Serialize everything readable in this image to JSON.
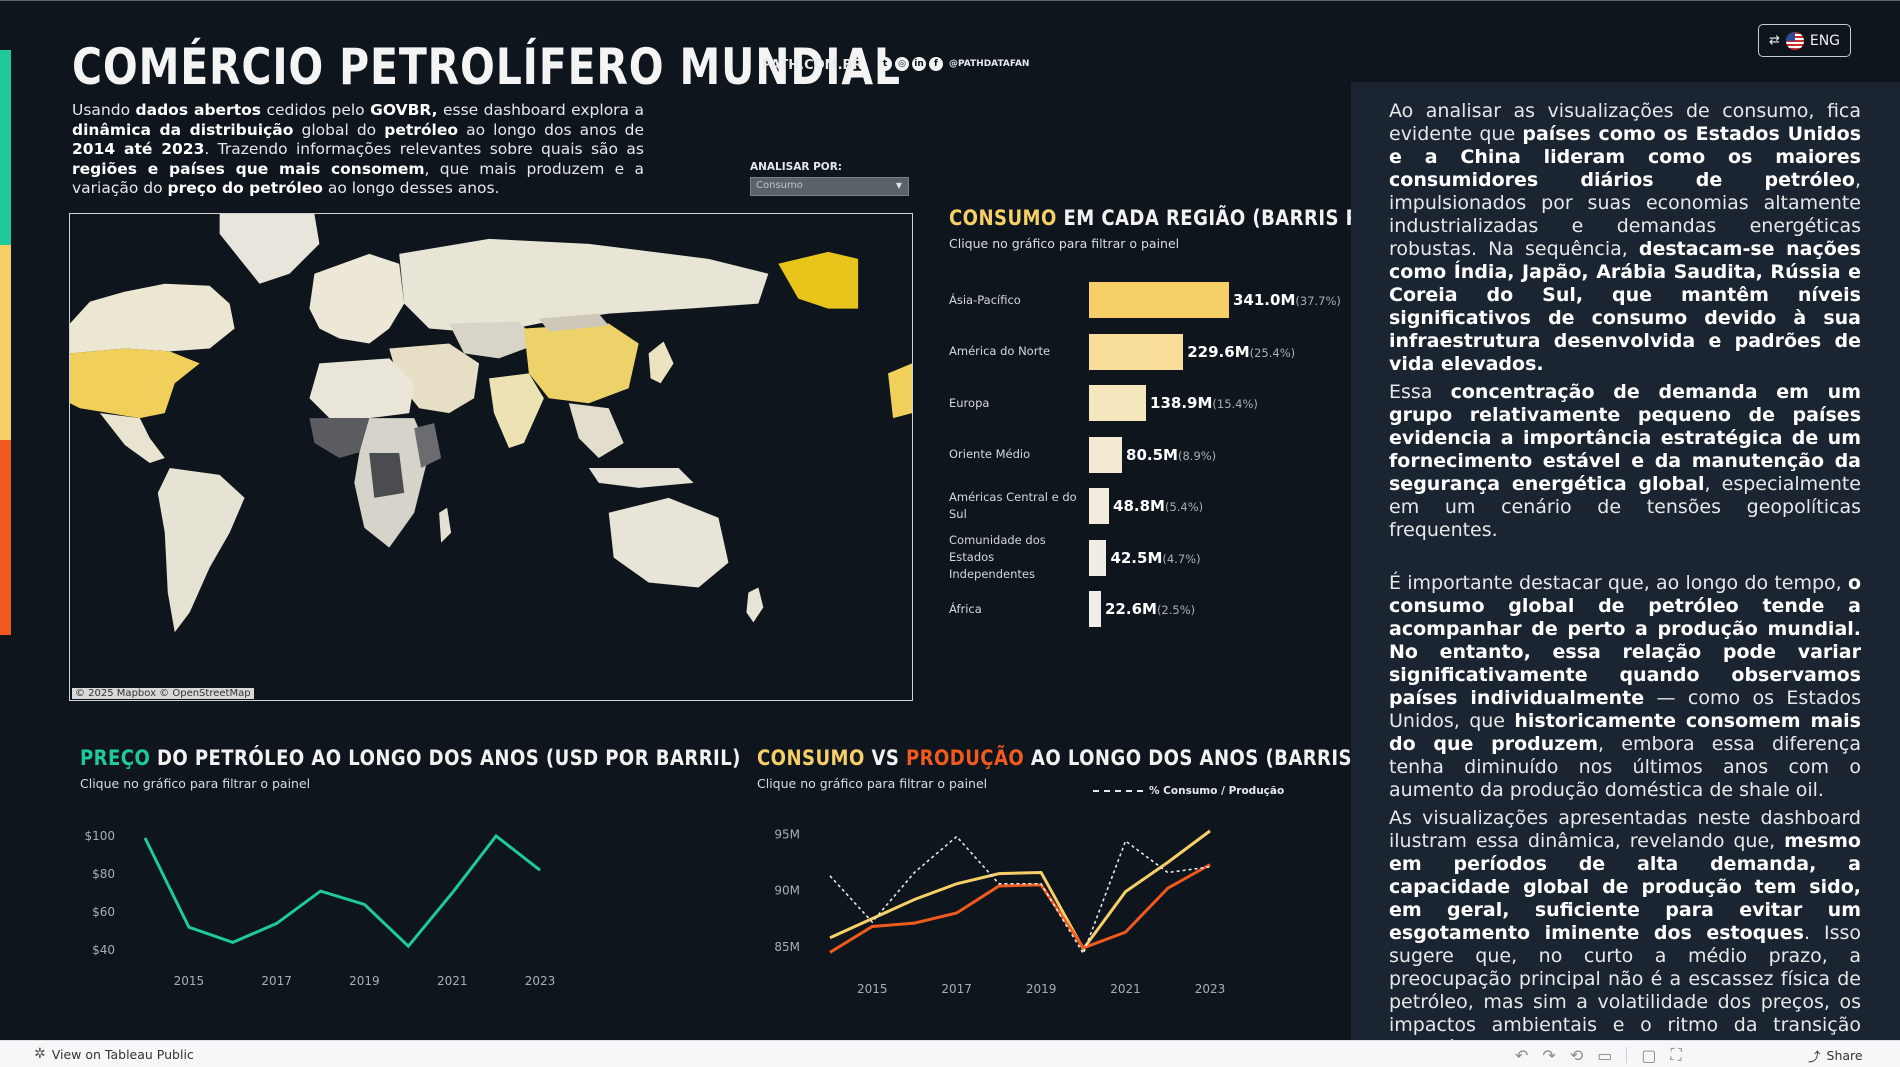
{
  "header": {
    "title": "COMÉRCIO PETROLÍFERO MUNDIAL",
    "site": "PATH.COM.BR",
    "social_icons": [
      "twitter-icon",
      "instagram-icon",
      "linkedin-icon",
      "facebook-icon"
    ],
    "social_glyphs": [
      "t",
      "◎",
      "in",
      "f"
    ],
    "handle": "@PATHDATAFAN"
  },
  "language": {
    "label": "ENG",
    "icon": "translate-icon"
  },
  "intro": {
    "segments": [
      {
        "t": "Usando ",
        "b": false
      },
      {
        "t": "dados abertos",
        "b": true
      },
      {
        "t": " cedidos pelo ",
        "b": false
      },
      {
        "t": "GOVBR,",
        "b": true
      },
      {
        "t": " esse dashboard explora a ",
        "b": false
      },
      {
        "t": "dinâmica da distribuição",
        "b": true
      },
      {
        "t": " global do ",
        "b": false
      },
      {
        "t": "petróleo",
        "b": true
      },
      {
        "t": " ao longo dos anos de ",
        "b": false
      },
      {
        "t": "2014 até 2023",
        "b": true
      },
      {
        "t": ". Trazendo informações relevantes sobre quais são as ",
        "b": false
      },
      {
        "t": "regiões e países que mais consomem",
        "b": true
      },
      {
        "t": ", que mais produzem e a variação do ",
        "b": false
      },
      {
        "t": "preço do petróleo",
        "b": true
      },
      {
        "t": " ao longo desses anos.",
        "b": false
      }
    ]
  },
  "filter": {
    "label": "ANALISAR POR:",
    "selected": "Consumo"
  },
  "map": {
    "attribution": "© 2025 Mapbox  © OpenStreetMap"
  },
  "consumo_section": {
    "title_highlight": "CONSUMO",
    "title_rest": " EM CADA REGIÃO (BARRIS POR DIA)",
    "subtitle": "Clique no gráfico para filtrar o painel",
    "rows": [
      {
        "region": "Ásia-Pacífico",
        "value_label": "341.0M",
        "pct_label": "(37.7%)",
        "value": 341.0
      },
      {
        "region": "América do Norte",
        "value_label": "229.6M",
        "pct_label": "(25.4%)",
        "value": 229.6
      },
      {
        "region": "Europa",
        "value_label": "138.9M",
        "pct_label": "(15.4%)",
        "value": 138.9
      },
      {
        "region": "Oriente Médio",
        "value_label": "80.5M",
        "pct_label": "(8.9%)",
        "value": 80.5
      },
      {
        "region": "Américas Central e do Sul",
        "value_label": "48.8M",
        "pct_label": "(5.4%)",
        "value": 48.8
      },
      {
        "region": "Comunidade dos Estados Independentes",
        "value_label": "42.5M",
        "pct_label": "(4.7%)",
        "value": 42.5
      },
      {
        "region": "África",
        "value_label": "22.6M",
        "pct_label": "(2.5%)",
        "value": 22.6
      }
    ],
    "colors": [
      "#f6cf68",
      "#f7dc9a",
      "#f6e6be",
      "#f4ead4",
      "#f2ecdf",
      "#f1ede4",
      "#f0ede8"
    ]
  },
  "price_section": {
    "title_highlight": "PREÇO",
    "title_rest": " DO PETRÓLEO AO LONGO DOS ANOS (USD POR BARRIL)",
    "subtitle": "Clique no gráfico para filtrar o painel"
  },
  "cvp_section": {
    "title_a": "CONSUMO",
    "title_vs": " VS ",
    "title_b": "PRODUÇÃO",
    "title_rest": " AO LONGO DOS ANOS (BARRIS POR DIA)",
    "subtitle": "Clique no gráfico para filtrar o painel",
    "legend": "% Consumo / Produção"
  },
  "chart_data": [
    {
      "type": "line",
      "title": "PREÇO DO PETRÓLEO AO LONGO DOS ANOS (USD POR BARRIL)",
      "x": [
        2014,
        2015,
        2016,
        2017,
        2018,
        2019,
        2020,
        2021,
        2022,
        2023
      ],
      "series": [
        {
          "values": [
            99,
            52,
            44,
            54,
            71,
            64,
            42,
            70,
            100,
            82
          ],
          "color": "#1fc99a"
        }
      ],
      "xticks": [
        "2015",
        "2017",
        "2019",
        "2021",
        "2023"
      ],
      "yticks": [
        "$100",
        "$80",
        "$60",
        "$40"
      ],
      "ylim": [
        40,
        100
      ]
    },
    {
      "type": "line",
      "title": "CONSUMO VS PRODUÇÃO AO LONGO DOS ANOS (BARRIS POR DIA)",
      "x": [
        2014,
        2015,
        2016,
        2017,
        2018,
        2019,
        2020,
        2021,
        2022,
        2023
      ],
      "series": [
        {
          "name": "CONSUMO",
          "values": [
            85.8,
            87.5,
            89.2,
            90.6,
            91.5,
            91.6,
            84.8,
            89.9,
            92.5,
            95.3
          ],
          "color": "#f6cf68"
        },
        {
          "name": "PRODUÇÃO",
          "values": [
            84.5,
            86.8,
            87.1,
            88.0,
            90.4,
            90.5,
            84.9,
            86.3,
            90.2,
            92.3
          ],
          "color": "#f05a1e"
        },
        {
          "name": "% Consumo / Produção",
          "values": [
            91.3,
            87.2,
            91.6,
            94.8,
            90.6,
            90.6,
            84.4,
            94.4,
            91.6,
            92.1
          ],
          "color": "#e6e8ea",
          "dashed": true
        }
      ],
      "xticks": [
        "2015",
        "2017",
        "2019",
        "2021",
        "2023"
      ],
      "yticks": [
        "95M",
        "90M",
        "85M"
      ],
      "ylim": [
        84,
        96
      ]
    }
  ],
  "side_panel": {
    "paragraphs": [
      [
        {
          "t": "Ao analisar as visualizações de consumo, fica evidente que ",
          "b": false
        },
        {
          "t": "países como os Estados Unidos e a China lideram como os maiores consumidores diários de petróleo",
          "b": true
        },
        {
          "t": ", impulsionados por suas economias altamente industrializadas e demandas energéticas robustas. Na sequência, ",
          "b": false
        },
        {
          "t": "destacam-se nações como Índia, Japão, Arábia Saudita, Rússia e Coreia do Sul, que mantêm níveis significativos de consumo devido à sua infraestrutura desenvolvida e padrões de vida elevados.",
          "b": true
        }
      ],
      [
        {
          "t": "Essa ",
          "b": false
        },
        {
          "t": "concentração de demanda em um grupo relativamente pequeno de países evidencia a importância estratégica de um fornecimento estável e da manutenção da segurança energética global",
          "b": true
        },
        {
          "t": ", especialmente em um cenário de tensões geopolíticas frequentes.",
          "b": false
        }
      ],
      [
        {
          "t": "É importante destacar que, ao longo do tempo, ",
          "b": false
        },
        {
          "t": "o consumo global de petróleo tende a acompanhar de perto a produção mundial. No entanto, essa relação pode variar significativamente quando observamos países individualmente",
          "b": true
        },
        {
          "t": " — como os Estados Unidos, que ",
          "b": false
        },
        {
          "t": "historicamente consomem mais do que produzem",
          "b": true
        },
        {
          "t": ", embora essa diferença tenha diminuído nos últimos anos com o aumento da produção doméstica de shale oil.",
          "b": false
        }
      ],
      [
        {
          "t": "As visualizações apresentadas neste dashboard ilustram essa dinâmica, revelando que, ",
          "b": false
        },
        {
          "t": "mesmo em períodos de alta demanda, a capacidade global de produção tem sido, em geral, suficiente para evitar um esgotamento iminente dos estoques",
          "b": true
        },
        {
          "t": ". Isso sugere que, no curto a médio prazo, a preocupação principal não é a escassez física de petróleo, mas sim a volatilidade dos preços, os impactos ambientais e o ritmo da transição energética para fontes mais limpas e sustentáveis.",
          "b": false
        }
      ]
    ]
  },
  "footer": {
    "tableau_link": "View on Tableau Public",
    "share_label": "Share",
    "toolbar_icons": [
      "undo-icon",
      "redo-icon",
      "revert-icon",
      "refresh-icon",
      "comment-icon",
      "fullscreen-icon"
    ],
    "toolbar_glyphs": [
      "↶",
      "↷",
      "⟲",
      "▭",
      "▢",
      "⛶"
    ]
  }
}
